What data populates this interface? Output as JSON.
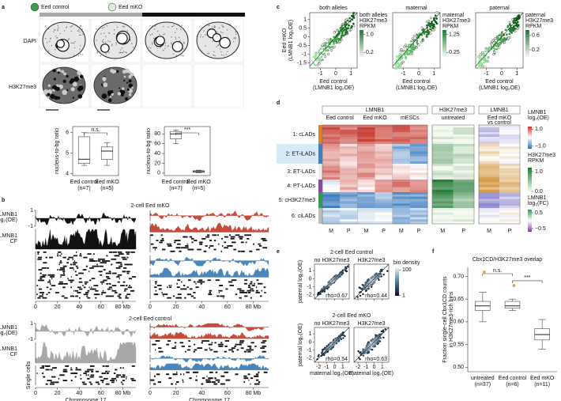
{
  "panel_a": {
    "label": "a",
    "legend": [
      "Eed control",
      "Eed mKO"
    ],
    "rows": [
      "DAPI",
      "H3K27me3"
    ],
    "plots": [
      {
        "title": "DAPI",
        "ylabel": "nucleus-to-bg ratio",
        "ylim": [
          3.9,
          6.3
        ],
        "yticks": [
          4,
          5,
          6
        ],
        "categories": [
          "Eed control",
          "Eed mKO"
        ],
        "n_labels": [
          "(n=7)",
          "(n=5)"
        ],
        "point_color": "#3b6fc4",
        "boxes": [
          {
            "min": 4.4,
            "q1": 4.5,
            "median": 4.7,
            "q3": 5.8,
            "max": 6.0
          },
          {
            "min": 4.4,
            "q1": 4.7,
            "median": 5.1,
            "q3": 5.3,
            "max": 5.5
          }
        ],
        "significance": [
          "n.s."
        ]
      },
      {
        "title": "H3K27me3",
        "ylabel": "nucleus-to-bg ratio",
        "ylim": [
          -5,
          95
        ],
        "yticks": [
          0,
          20,
          40,
          60,
          80
        ],
        "categories": [
          "Eed control",
          "Eed mKO"
        ],
        "n_labels": [
          "(n=7)",
          "(n=5)"
        ],
        "point_color": "#3a9d4a",
        "boxes": [
          {
            "min": 60,
            "q1": 70,
            "median": 80,
            "q3": 85,
            "max": 88
          },
          {
            "min": 1,
            "q1": 2,
            "median": 3,
            "q3": 5,
            "max": 6
          }
        ],
        "significance": [
          "***"
        ]
      }
    ]
  },
  "panel_b": {
    "label": "b",
    "blocks": [
      "2-cell Eed mKO",
      "2-cell Eed control"
    ],
    "track_labels": [
      [
        "LMNB1",
        "log₂(OE)"
      ],
      [
        "LMNB1",
        "CF"
      ]
    ],
    "single_cells_label": "Single cells",
    "track_yticks": [
      1,
      -1
    ],
    "xlim": [
      0,
      92
    ],
    "xticks": [
      0,
      20,
      40,
      60,
      {
        "value": 80,
        "label": "80 Mb"
      }
    ],
    "xlabel": "Chromosome 17"
  },
  "panel_c": {
    "label": "c",
    "plots": [
      {
        "title": "both alleles",
        "colorbar_title": [
          "both alleles",
          "H3K27me3",
          "RPKM"
        ],
        "clim": [
          0,
          1.2
        ],
        "cticks": [
          {
            "value": 1,
            "label": "1.0"
          },
          0.2
        ]
      },
      {
        "title": "maternal",
        "colorbar_title": [
          "maternal",
          "H3K27me3",
          "RPKM"
        ],
        "clim": [
          0,
          1.5
        ],
        "cticks": [
          1.25,
          0.25
        ]
      },
      {
        "title": "paternal",
        "colorbar_title": [
          "paternal",
          "H3K27me3",
          "RPKM"
        ],
        "clim": [
          0,
          0.75
        ],
        "cticks": [
          0.6,
          0.2
        ]
      }
    ],
    "ylabel": [
      "Eed mKO",
      "(LMNB1 log₂OE)"
    ],
    "xlabel": [
      "Eed control",
      "(LMNB1 log₂OE)"
    ],
    "xlim": [
      -1.7,
      1.4
    ],
    "xticks": [
      -1,
      0,
      1
    ],
    "ylim": [
      -1.8,
      1.4
    ],
    "yticks": [
      1,
      0.5,
      0,
      -0.5,
      -1,
      -1.5
    ]
  },
  "panel_d": {
    "label": "d",
    "groups": [
      {
        "title": "LMNB1",
        "columns": [
          "Eed control",
          "Eed mKO",
          "mESCs"
        ]
      },
      {
        "title": "H3K27me3",
        "columns": [
          "untreated"
        ]
      },
      {
        "title": "LMNB1",
        "columns": [
          [
            "Eed mKO",
            "vs control"
          ]
        ]
      }
    ],
    "rows": [
      "1: cLADs",
      "2: ET-iLADs",
      "3: ET-LADs",
      "4: PT-LADs",
      "5: cH3K27me3",
      "6: ciLADs"
    ],
    "alleles": [
      "M",
      "P"
    ],
    "legends": [
      {
        "title": [
          "LMNB1",
          "log₂(OE)"
        ],
        "clim": [
          -1.3,
          1.3
        ],
        "ticks": [
          {
            "value": 1,
            "label": "1.0"
          },
          {
            "value": -1,
            "label": "−1.0"
          }
        ]
      },
      {
        "title": [
          "H3K27me3",
          "RPKM"
        ],
        "clim": [
          0,
          1.2
        ],
        "ticks": [
          {
            "value": 1,
            "label": "1.0"
          },
          {
            "value": 0,
            "label": "0.0"
          }
        ]
      },
      {
        "title": [
          "LMNB1",
          "log₂(FC)"
        ],
        "clim": [
          -0.7,
          0.7
        ],
        "ticks": [
          0.5,
          {
            "value": -0.5,
            "label": "−0.5"
          }
        ]
      }
    ]
  },
  "panel_e": {
    "label": "e",
    "blocks": [
      {
        "title": "2-cell Eed control",
        "rho": [
          "rho=0.67",
          "rho=0.44"
        ]
      },
      {
        "title": "2-cell Eed mKO",
        "rho": [
          "rho=0.54",
          "rho=0.63"
        ]
      }
    ],
    "columns": [
      "no H3K27me3",
      "H3K27me3"
    ],
    "ylabel": "paternal log₂(OE)",
    "xlabel": "maternal log₂(OE)",
    "xlim": [
      -2.5,
      1.8
    ],
    "xticks": [
      -2,
      -1,
      0,
      1
    ],
    "ylim": [
      -2.5,
      1.8
    ],
    "yticks": [
      -2,
      -1,
      0,
      1
    ],
    "colorbar_title": "bin density",
    "clim": [
      0,
      110
    ],
    "cticks": [
      100,
      1
    ]
  },
  "panel_f": {
    "label": "f",
    "plots": [
      {
        "title": "Cbx1CD/H3K27me3 overlap",
        "ylabel": [
          "Fraction single-cell Cbx1CD counts",
          "in H3K27me3-rich bins"
        ],
        "ylim": [
          0.49,
          0.72
        ],
        "yticks": [
          {
            "value": 0.5,
            "label": "0.50"
          },
          0.55,
          {
            "value": 0.6,
            "label": "0.60"
          },
          0.65,
          {
            "value": 0.7,
            "label": "0.70"
          }
        ],
        "categories": [
          "untreated",
          "Eed control",
          "Eed mKO"
        ],
        "n_labels": [
          "(n=37)",
          "(n=6)",
          "(n=11)"
        ],
        "point_color": "#f0a030",
        "boxes": [
          {
            "min": 0.6,
            "q1": 0.625,
            "median": 0.635,
            "q3": 0.645,
            "max": 0.665,
            "outliers": [
              0.71
            ]
          },
          {
            "min": 0.625,
            "q1": 0.63,
            "median": 0.635,
            "q3": 0.645,
            "max": 0.65,
            "outliers": [
              0.68
            ]
          },
          {
            "min": 0.54,
            "q1": 0.56,
            "median": 0.572,
            "q3": 0.585,
            "max": 0.605,
            "outliers": []
          }
        ],
        "significance": [
          "n.s.",
          "***"
        ]
      }
    ]
  }
}
